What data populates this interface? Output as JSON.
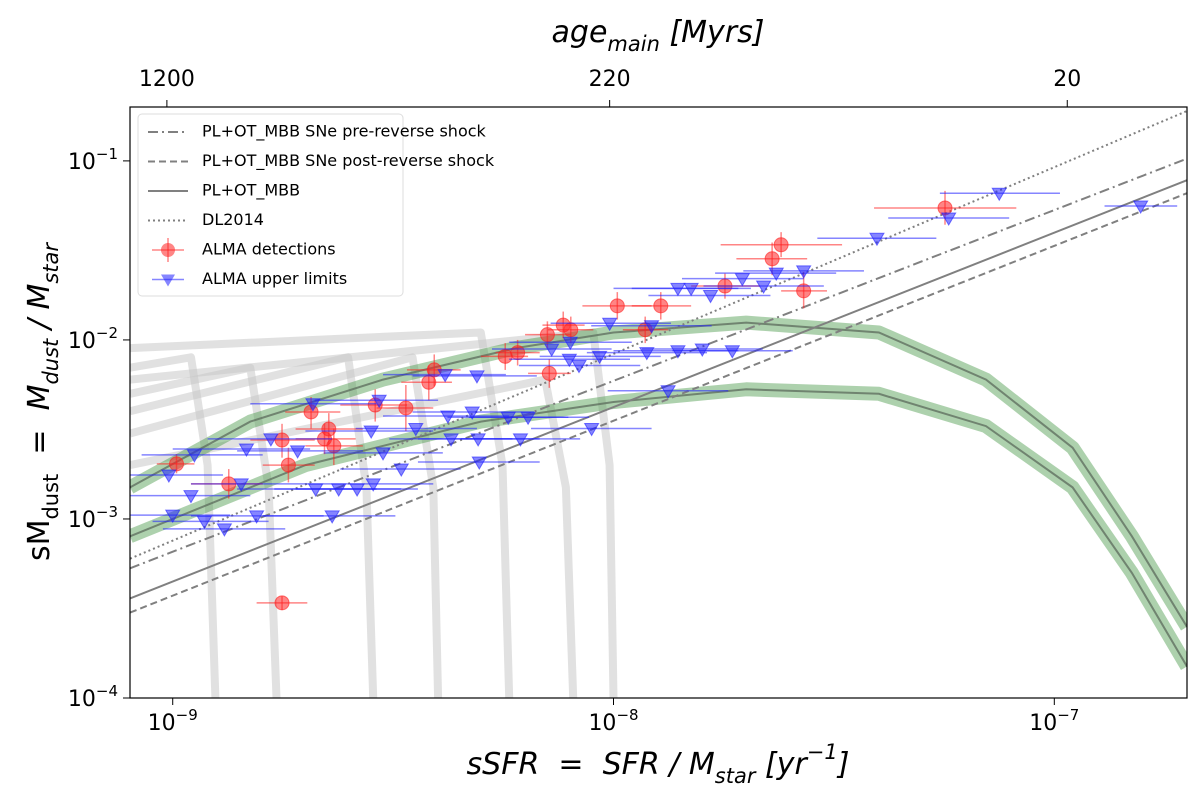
{
  "chart_data": {
    "type": "scatter",
    "top_xlabel": [
      "age",
      "main",
      " [Myrs]"
    ],
    "xlabel": [
      "sSFR  =  SFR / M",
      "star",
      " [yr",
      "−1",
      "]"
    ],
    "ylabel": [
      "sM",
      "dust",
      "  =  M",
      "dust",
      " / M",
      "star"
    ],
    "xscale": "log",
    "yscale": "log",
    "xlim": [
      8e-10,
      2e-07
    ],
    "ylim": [
      0.0001,
      0.2
    ],
    "xticks": [
      {
        "value": 1e-09,
        "label": "10−9"
      },
      {
        "value": 1e-08,
        "label": "10−8"
      },
      {
        "value": 1e-07,
        "label": "10−7"
      }
    ],
    "yticks": [
      {
        "value": 0.0001,
        "label": "10−4"
      },
      {
        "value": 0.001,
        "label": "10−3"
      },
      {
        "value": 0.01,
        "label": "10−2"
      },
      {
        "value": 0.1,
        "label": "10−1"
      }
    ],
    "top_xticks": [
      {
        "value": 9.7e-10,
        "label": "1200"
      },
      {
        "value": 9.8e-09,
        "label": "220"
      },
      {
        "value": 1.07e-07,
        "label": "20"
      }
    ],
    "legend": "upper left",
    "series": [
      {
        "name": "PL+OT_MBB SNe pre-reverse shock",
        "type": "line",
        "style": "dashdot",
        "color": "#808080",
        "x": [
          8e-10,
          2e-07
        ],
        "values": [
          0.00053,
          0.103
        ]
      },
      {
        "name": "PL+OT_MBB SNe post-reverse shock",
        "type": "line",
        "style": "dashed",
        "color": "#808080",
        "x": [
          8e-10,
          2e-07
        ],
        "values": [
          0.0003,
          0.066
        ]
      },
      {
        "name": "PL+OT_MBB",
        "type": "line",
        "style": "solid",
        "color": "#808080",
        "x": [
          8e-10,
          2e-07
        ],
        "values": [
          0.00036,
          0.078
        ]
      },
      {
        "name": "DL2014",
        "type": "line",
        "style": "dotted",
        "color": "#808080",
        "x": [
          8e-10,
          2e-07
        ],
        "values": [
          0.0006,
          0.19
        ]
      },
      {
        "name": "ALMA detections",
        "type": "scatter",
        "marker": "circle",
        "color": "#ff2020",
        "x": [
          1.02e-09,
          1.34e-09,
          1.77e-09,
          1.83e-09,
          2.06e-09,
          2.26e-09,
          2.21e-09,
          2.32e-09,
          2.88e-09,
          3.38e-09,
          3.81e-09,
          3.92e-09,
          5.68e-09,
          6.06e-09,
          7.08e-09,
          7.15e-09,
          7.69e-09,
          8e-09,
          1.02e-08,
          1.18e-08,
          1.28e-08,
          1.79e-08,
          2.29e-08,
          2.4e-08,
          2.7e-08,
          5.65e-08,
          1.77e-09
        ],
        "values": [
          0.00203,
          0.00157,
          0.00276,
          0.002,
          0.00396,
          0.00318,
          0.0028,
          0.00256,
          0.00433,
          0.00417,
          0.0058,
          0.0068,
          0.0081,
          0.0085,
          0.0107,
          0.0065,
          0.0121,
          0.0114,
          0.0155,
          0.0114,
          0.0155,
          0.02,
          0.0284,
          0.034,
          0.0188,
          0.0546,
          0.00034
        ],
        "x_low": [
          9.2e-10,
          1.1e-09,
          1.5e-09,
          1.6e-09,
          1.8e-09,
          1.9e-09,
          1.9e-09,
          2e-09,
          2.4e-09,
          2.9e-09,
          3.3e-09,
          3.4e-09,
          5e-09,
          5.4e-09,
          6.3e-09,
          6.4e-09,
          6.9e-09,
          7.1e-09,
          8.5e-09,
          1.05e-08,
          1.1e-08,
          1.5e-08,
          1.9e-08,
          1.75e-08,
          2.4e-08,
          3.9e-08,
          1.55e-09
        ],
        "x_high": [
          1.12e-09,
          1.6e-09,
          2.1e-09,
          2.1e-09,
          2.4e-09,
          2.7e-09,
          2.6e-09,
          2.7e-09,
          3.4e-09,
          3.9e-09,
          4.3e-09,
          4.5e-09,
          6.4e-09,
          6.8e-09,
          8e-09,
          8e-09,
          8.6e-09,
          9e-09,
          1.22e-08,
          1.33e-08,
          1.5e-08,
          2.15e-08,
          2.75e-08,
          3.3e-08,
          3.05e-08,
          8.2e-08,
          2.02e-09
        ],
        "y_low": [
          0.0018,
          0.0013,
          0.0022,
          0.0016,
          0.0032,
          0.0026,
          0.0023,
          0.002,
          0.0035,
          0.0031,
          0.0046,
          0.0055,
          0.0068,
          0.0072,
          0.009,
          0.0054,
          0.0102,
          0.0096,
          0.013,
          0.0096,
          0.013,
          0.017,
          0.023,
          0.029,
          0.015,
          0.044,
          0.00031
        ],
        "y_high": [
          0.0023,
          0.0019,
          0.0034,
          0.0025,
          0.0048,
          0.0039,
          0.0034,
          0.0032,
          0.0053,
          0.0056,
          0.0072,
          0.0083,
          0.0096,
          0.01,
          0.0127,
          0.0078,
          0.0144,
          0.0135,
          0.0185,
          0.0135,
          0.0185,
          0.0235,
          0.035,
          0.04,
          0.024,
          0.068,
          0.00037
        ]
      },
      {
        "name": "ALMA upper limits",
        "type": "scatter",
        "marker": "triangle_down",
        "color": "#2020ff",
        "x": [
          9.8e-10,
          1.12e-09,
          1e-09,
          1.18e-09,
          1.1e-09,
          1.31e-09,
          1.43e-09,
          1.47e-09,
          1.55e-09,
          1.67e-09,
          1.92e-09,
          2.08e-09,
          2.11e-09,
          2.38e-09,
          2.3e-09,
          2.62e-09,
          2.85e-09,
          2.82e-09,
          3e-09,
          2.94e-09,
          3.3e-09,
          3.56e-09,
          4.15e-09,
          4.21e-09,
          4.28e-09,
          4.78e-09,
          4.9e-09,
          4.93e-09,
          4.96e-09,
          5.77e-09,
          6.15e-09,
          6.4e-09,
          7.24e-09,
          7.98e-09,
          7.94e-09,
          8.35e-09,
          8.92e-09,
          9.3e-09,
          9.8e-09,
          1.19e-08,
          1.22e-08,
          1.33e-08,
          1.4e-08,
          1.4e-08,
          1.5e-08,
          1.59e-08,
          1.66e-08,
          1.86e-08,
          1.96e-08,
          2.19e-08,
          2.34e-08,
          2.7e-08,
          3.96e-08,
          5.76e-08,
          7.5e-08,
          1.57e-07
        ],
        "values": [
          0.00176,
          0.00228,
          0.00105,
          0.00097,
          0.00135,
          0.00088,
          0.00157,
          0.00246,
          0.00104,
          0.0028,
          0.0024,
          0.0044,
          0.00147,
          0.00147,
          0.00104,
          0.00147,
          0.00157,
          0.0031,
          0.00234,
          0.0046,
          0.0019,
          0.0032,
          0.0064,
          0.00376,
          0.0028,
          0.00396,
          0.0063,
          0.0028,
          0.00208,
          0.0037,
          0.0028,
          0.0037,
          0.0089,
          0.0097,
          0.0078,
          0.0072,
          0.0032,
          0.0081,
          0.0124,
          0.0085,
          0.012,
          0.0052,
          0.0087,
          0.0194,
          0.0194,
          0.0089,
          0.0177,
          0.0087,
          0.022,
          0.02,
          0.0236,
          0.0243,
          0.037,
          0.048,
          0.066,
          0.056
        ],
        "x_low": [
          8e-10,
          8.5e-10,
          8e-10,
          9e-10,
          8e-10,
          9.5e-10,
          1.1e-09,
          1e-09,
          1.1e-09,
          1.2e-09,
          1.4e-09,
          1.5e-09,
          1.4e-09,
          1.7e-09,
          1.6e-09,
          1.9e-09,
          2e-09,
          2e-09,
          2.2e-09,
          2.1e-09,
          2.4e-09,
          2.6e-09,
          3e-09,
          3e-09,
          3.1e-09,
          3.5e-09,
          3.5e-09,
          3.6e-09,
          3.6e-09,
          4.2e-09,
          4.5e-09,
          4.7e-09,
          5.3e-09,
          5.8e-09,
          5.8e-09,
          6.1e-09,
          6.5e-09,
          6.8e-09,
          7.2e-09,
          8.7e-09,
          8.9e-09,
          9.7e-09,
          1e-08,
          1e-08,
          1.1e-08,
          1.16e-08,
          1.2e-08,
          1.36e-08,
          1.43e-08,
          1.6e-08,
          1.7e-08,
          1.97e-08,
          2.9e-08,
          4.2e-08,
          5.5e-08,
          1.3e-07
        ],
        "x_high": [
          1.3e-09,
          1.6e-09,
          1.35e-09,
          1.65e-09,
          1.5e-09,
          1.8e-09,
          2e-09,
          2.05e-09,
          2.2e-09,
          2.3e-09,
          2.7e-09,
          2.9e-09,
          2.9e-09,
          3.3e-09,
          3.2e-09,
          3.6e-09,
          3.9e-09,
          3.9e-09,
          4.1e-09,
          4e-09,
          4.5e-09,
          4.9e-09,
          5.7e-09,
          5.8e-09,
          5.9e-09,
          6.6e-09,
          6.7e-09,
          6.8e-09,
          6.8e-09,
          7.9e-09,
          8.4e-09,
          8.8e-09,
          9.9e-09,
          1.1e-08,
          1.09e-08,
          1.15e-08,
          1.22e-08,
          1.28e-08,
          1.35e-08,
          1.63e-08,
          1.67e-08,
          1.82e-08,
          1.92e-08,
          1.92e-08,
          2.05e-08,
          2.18e-08,
          2.27e-08,
          2.55e-08,
          2.7e-08,
          3e-08,
          3.2e-08,
          3.7e-08,
          5.4e-08,
          7.9e-08,
          1.03e-07,
          1.9e-07
        ]
      }
    ],
    "tracks": [
      {
        "color": "#c8c8c8",
        "x": [
          8e-10,
          1.1e-09,
          1.2e-09,
          1.25e-09
        ],
        "values": [
          0.007,
          0.008,
          0.002,
          0.0001
        ]
      },
      {
        "color": "#c8c8c8",
        "x": [
          8e-10,
          1.5e-09,
          1.65e-09,
          1.72e-09
        ],
        "values": [
          0.005,
          0.007,
          0.0015,
          0.0001
        ]
      },
      {
        "color": "#c8c8c8",
        "x": [
          8e-10,
          2.5e-09,
          2.75e-09,
          2.85e-09
        ],
        "values": [
          0.004,
          0.008,
          0.0015,
          0.0001
        ]
      },
      {
        "color": "#c8c8c8",
        "x": [
          8e-10,
          3.5e-09,
          3.9e-09,
          4e-09
        ],
        "values": [
          0.003,
          0.008,
          0.0015,
          0.0001
        ]
      },
      {
        "color": "#c8c8c8",
        "x": [
          8e-10,
          5e-09,
          5.6e-09,
          5.8e-09
        ],
        "values": [
          0.009,
          0.011,
          0.002,
          0.0001
        ]
      },
      {
        "color": "#c8c8c8",
        "x": [
          8e-10,
          7e-09,
          7.8e-09,
          8.1e-09
        ],
        "values": [
          0.002,
          0.006,
          0.0015,
          0.0001
        ]
      },
      {
        "color": "#c8c8c8",
        "x": [
          8e-10,
          9e-09,
          9.8e-09,
          1e-08
        ],
        "values": [
          0.006,
          0.011,
          0.002,
          0.0001
        ]
      },
      {
        "color": "#4a9a4a",
        "x": [
          8e-10,
          1.5e-09,
          3e-09,
          6e-09,
          1e-08,
          2e-08,
          4e-08,
          7e-08,
          1.1e-07,
          1.5e-07,
          2e-07
        ],
        "values": [
          0.0015,
          0.0035,
          0.006,
          0.009,
          0.011,
          0.0125,
          0.011,
          0.006,
          0.0025,
          0.0008,
          0.00025
        ]
      },
      {
        "color": "#4a9a4a",
        "x": [
          8e-10,
          2e-09,
          5e-09,
          1e-08,
          2e-08,
          4e-08,
          7e-08,
          1.1e-07,
          1.5e-07,
          2e-07
        ],
        "values": [
          0.0008,
          0.002,
          0.0035,
          0.0045,
          0.0053,
          0.005,
          0.0033,
          0.0015,
          0.0005,
          0.00015
        ]
      }
    ]
  }
}
